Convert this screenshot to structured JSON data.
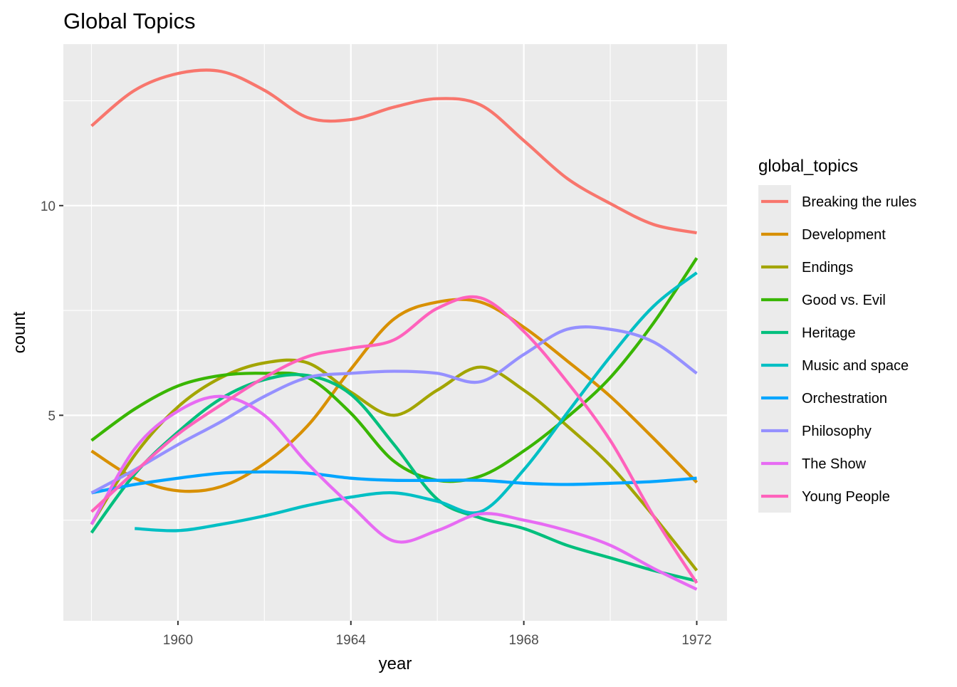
{
  "chart_data": {
    "type": "line",
    "title": "Global Topics",
    "xlabel": "year",
    "ylabel": "count",
    "xlim": [
      1957.35,
      1972.7
    ],
    "ylim": [
      0.1,
      13.85
    ],
    "x_ticks": [
      1960,
      1964,
      1968,
      1972
    ],
    "x_minor_ticks": [
      1958,
      1962,
      1966,
      1970
    ],
    "y_ticks": [
      5,
      10
    ],
    "y_minor_ticks": [
      2.5,
      7.5,
      12.5
    ],
    "grid": true,
    "smoothed": true,
    "legend": {
      "title": "global_topics",
      "position": "right"
    },
    "series": [
      {
        "name": "Breaking the rules",
        "color": "#F8766D",
        "points": [
          [
            1958,
            11.9
          ],
          [
            1959,
            12.75
          ],
          [
            1960,
            13.15
          ],
          [
            1961,
            13.2
          ],
          [
            1962,
            12.75
          ],
          [
            1963,
            12.1
          ],
          [
            1964,
            12.05
          ],
          [
            1965,
            12.35
          ],
          [
            1966,
            12.55
          ],
          [
            1967,
            12.4
          ],
          [
            1968,
            11.55
          ],
          [
            1969,
            10.65
          ],
          [
            1970,
            10.05
          ],
          [
            1971,
            9.55
          ],
          [
            1972,
            9.35
          ]
        ]
      },
      {
        "name": "Development",
        "color": "#D89000",
        "points": [
          [
            1958,
            4.15
          ],
          [
            1959,
            3.5
          ],
          [
            1960,
            3.2
          ],
          [
            1961,
            3.3
          ],
          [
            1962,
            3.85
          ],
          [
            1963,
            4.75
          ],
          [
            1964,
            6.1
          ],
          [
            1965,
            7.3
          ],
          [
            1966,
            7.7
          ],
          [
            1967,
            7.7
          ],
          [
            1968,
            7.1
          ],
          [
            1969,
            6.3
          ],
          [
            1970,
            5.45
          ],
          [
            1971,
            4.45
          ],
          [
            1972,
            3.4
          ]
        ]
      },
      {
        "name": "Endings",
        "color": "#A3A500",
        "points": [
          [
            1958,
            2.4
          ],
          [
            1959,
            4.05
          ],
          [
            1960,
            5.2
          ],
          [
            1961,
            5.9
          ],
          [
            1962,
            6.25
          ],
          [
            1963,
            6.25
          ],
          [
            1964,
            5.55
          ],
          [
            1965,
            5.0
          ],
          [
            1966,
            5.6
          ],
          [
            1967,
            6.15
          ],
          [
            1968,
            5.6
          ],
          [
            1969,
            4.75
          ],
          [
            1970,
            3.8
          ],
          [
            1971,
            2.6
          ],
          [
            1972,
            1.3
          ]
        ]
      },
      {
        "name": "Good vs. Evil",
        "color": "#39B600",
        "points": [
          [
            1958,
            4.4
          ],
          [
            1959,
            5.15
          ],
          [
            1960,
            5.7
          ],
          [
            1961,
            5.95
          ],
          [
            1962,
            6.0
          ],
          [
            1963,
            5.9
          ],
          [
            1964,
            5.05
          ],
          [
            1965,
            3.9
          ],
          [
            1966,
            3.45
          ],
          [
            1967,
            3.55
          ],
          [
            1968,
            4.15
          ],
          [
            1969,
            4.95
          ],
          [
            1970,
            5.9
          ],
          [
            1971,
            7.2
          ],
          [
            1972,
            8.75
          ]
        ]
      },
      {
        "name": "Heritage",
        "color": "#00BF7D",
        "points": [
          [
            1958,
            2.2
          ],
          [
            1959,
            3.6
          ],
          [
            1960,
            4.6
          ],
          [
            1961,
            5.4
          ],
          [
            1962,
            5.85
          ],
          [
            1963,
            5.95
          ],
          [
            1964,
            5.5
          ],
          [
            1965,
            4.3
          ],
          [
            1966,
            3.0
          ],
          [
            1967,
            2.55
          ],
          [
            1968,
            2.3
          ],
          [
            1969,
            1.9
          ],
          [
            1970,
            1.6
          ],
          [
            1971,
            1.3
          ],
          [
            1972,
            1.05
          ]
        ]
      },
      {
        "name": "Music and space",
        "color": "#00BFC4",
        "points": [
          [
            1959,
            2.3
          ],
          [
            1960,
            2.25
          ],
          [
            1961,
            2.4
          ],
          [
            1962,
            2.6
          ],
          [
            1963,
            2.85
          ],
          [
            1964,
            3.05
          ],
          [
            1965,
            3.15
          ],
          [
            1966,
            2.95
          ],
          [
            1967,
            2.7
          ],
          [
            1968,
            3.7
          ],
          [
            1969,
            5.05
          ],
          [
            1970,
            6.4
          ],
          [
            1971,
            7.6
          ],
          [
            1972,
            8.4
          ]
        ]
      },
      {
        "name": "Orchestration",
        "color": "#00A5FF",
        "points": [
          [
            1958,
            3.15
          ],
          [
            1959,
            3.35
          ],
          [
            1960,
            3.5
          ],
          [
            1961,
            3.62
          ],
          [
            1962,
            3.65
          ],
          [
            1963,
            3.62
          ],
          [
            1964,
            3.5
          ],
          [
            1965,
            3.45
          ],
          [
            1966,
            3.45
          ],
          [
            1967,
            3.45
          ],
          [
            1968,
            3.38
          ],
          [
            1969,
            3.35
          ],
          [
            1970,
            3.38
          ],
          [
            1971,
            3.42
          ],
          [
            1972,
            3.5
          ]
        ]
      },
      {
        "name": "Philosophy",
        "color": "#9590FF",
        "points": [
          [
            1958,
            3.15
          ],
          [
            1959,
            3.7
          ],
          [
            1960,
            4.3
          ],
          [
            1961,
            4.85
          ],
          [
            1962,
            5.45
          ],
          [
            1963,
            5.9
          ],
          [
            1964,
            6.0
          ],
          [
            1965,
            6.05
          ],
          [
            1966,
            6.0
          ],
          [
            1967,
            5.8
          ],
          [
            1968,
            6.45
          ],
          [
            1969,
            7.05
          ],
          [
            1970,
            7.05
          ],
          [
            1971,
            6.75
          ],
          [
            1972,
            6.0
          ]
        ]
      },
      {
        "name": "The Show",
        "color": "#E76BF3",
        "points": [
          [
            1958,
            2.4
          ],
          [
            1959,
            4.2
          ],
          [
            1960,
            5.1
          ],
          [
            1961,
            5.45
          ],
          [
            1962,
            5.0
          ],
          [
            1963,
            3.85
          ],
          [
            1964,
            2.85
          ],
          [
            1965,
            2.0
          ],
          [
            1966,
            2.25
          ],
          [
            1967,
            2.65
          ],
          [
            1968,
            2.5
          ],
          [
            1969,
            2.25
          ],
          [
            1970,
            1.9
          ],
          [
            1971,
            1.35
          ],
          [
            1972,
            0.85
          ]
        ]
      },
      {
        "name": "Young People",
        "color": "#FF62BC",
        "points": [
          [
            1958,
            2.7
          ],
          [
            1959,
            3.65
          ],
          [
            1960,
            4.55
          ],
          [
            1961,
            5.25
          ],
          [
            1962,
            5.9
          ],
          [
            1963,
            6.4
          ],
          [
            1964,
            6.6
          ],
          [
            1965,
            6.8
          ],
          [
            1966,
            7.55
          ],
          [
            1967,
            7.8
          ],
          [
            1968,
            7.0
          ],
          [
            1969,
            5.8
          ],
          [
            1970,
            4.4
          ],
          [
            1971,
            2.6
          ],
          [
            1972,
            1.0
          ]
        ]
      }
    ]
  }
}
